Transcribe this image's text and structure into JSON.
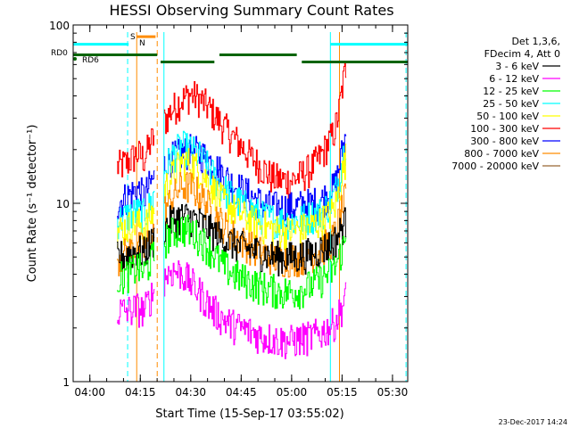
{
  "chart_data": {
    "type": "line",
    "title": "HESSI Observing Summary Count Rates",
    "xlabel": "Start Time (15-Sep-17 03:55:02)",
    "ylabel": "Count Rate (s⁻¹ detector⁻¹)",
    "y_scale": "log",
    "ylim": [
      1,
      100
    ],
    "x_unit": "minutes after 03:55:02",
    "xlim": [
      0,
      99.5
    ],
    "x_tick_labels": [
      "04:00",
      "04:15",
      "04:30",
      "04:45",
      "05:00",
      "05:15",
      "05:30"
    ],
    "x_tick_values": [
      4.97,
      19.97,
      34.97,
      49.97,
      64.97,
      79.97,
      94.97
    ],
    "y_tick_labels": [
      "1",
      "10",
      "100"
    ],
    "y_tick_values": [
      1,
      10,
      100
    ],
    "date_stamp": "23-Dec-2017 14:24",
    "legend": {
      "header": [
        "Det 1,3,6,",
        "FDecim 4, Att 0"
      ],
      "entries": [
        {
          "label": "3 - 6 keV",
          "color": "#000000"
        },
        {
          "label": "6 - 12 keV",
          "color": "#ff00ff"
        },
        {
          "label": "12 - 25 keV",
          "color": "#00ff00"
        },
        {
          "label": "25 - 50 keV",
          "color": "#00ffff"
        },
        {
          "label": "50 - 100 keV",
          "color": "#ffff00"
        },
        {
          "label": "100 - 300 keV",
          "color": "#ff0000"
        },
        {
          "label": "300 - 800 keV",
          "color": "#0000ff"
        },
        {
          "label": "800 - 7000 keV",
          "color": "#ff8c00"
        },
        {
          "label": "7000 - 20000 keV",
          "color": "#996633"
        }
      ]
    },
    "flags": {
      "rd0_label": "RD0",
      "rd6_label": "RD6",
      "s_label": "S",
      "n_label": "N"
    },
    "series": [
      {
        "name": "100 - 300 keV",
        "color": "#ff0000",
        "x": [
          13,
          16,
          19,
          21,
          23,
          26,
          29,
          32,
          35,
          38,
          41,
          44,
          47,
          50,
          53,
          56,
          59,
          62,
          65,
          68,
          71,
          74,
          77,
          78,
          79,
          80,
          81
        ],
        "y": [
          16,
          17,
          19,
          18,
          22,
          27,
          33,
          38,
          41,
          38,
          33,
          28,
          24,
          21,
          18,
          16,
          14,
          13.5,
          13.5,
          14.5,
          16,
          19,
          24,
          27,
          33,
          45,
          58
        ]
      },
      {
        "name": "300 - 800 keV",
        "color": "#0000ff",
        "x": [
          13,
          16,
          19,
          21,
          23,
          26,
          29,
          32,
          35,
          38,
          41,
          44,
          47,
          50,
          53,
          56,
          59,
          62,
          65,
          68,
          71,
          74,
          77,
          78,
          79,
          80,
          81
        ],
        "y": [
          10,
          11,
          12,
          11,
          13,
          16,
          18,
          19,
          20,
          19,
          17,
          15,
          13,
          12,
          11,
          10,
          9.6,
          9.5,
          9.5,
          9.8,
          10,
          10.5,
          12,
          13,
          16,
          20,
          24
        ]
      },
      {
        "name": "25 - 50 keV",
        "color": "#00ffff",
        "x": [
          13,
          16,
          19,
          21,
          23,
          26,
          29,
          32,
          35,
          38,
          41,
          44,
          47,
          50,
          53,
          56,
          59,
          62,
          65,
          68,
          71,
          74,
          77,
          78,
          79,
          80,
          81
        ],
        "y": [
          8,
          8.5,
          9,
          8.6,
          10,
          14,
          18,
          21,
          20,
          18,
          15,
          12.5,
          11,
          10,
          9.2,
          8.5,
          8.2,
          8,
          8,
          8.2,
          8.6,
          9,
          10.5,
          12,
          14,
          18,
          22
        ]
      },
      {
        "name": "50 - 100 keV",
        "color": "#ffff00",
        "x": [
          13,
          16,
          19,
          21,
          23,
          26,
          29,
          32,
          35,
          38,
          41,
          44,
          47,
          50,
          53,
          56,
          59,
          62,
          65,
          68,
          71,
          74,
          77,
          78,
          79,
          80,
          81
        ],
        "y": [
          7,
          7.4,
          7.8,
          7.4,
          8.5,
          11,
          14,
          17,
          17,
          15,
          12.5,
          10.5,
          9.5,
          8.6,
          8,
          7.5,
          7.2,
          7,
          7,
          7.2,
          7.5,
          8,
          9,
          10,
          12,
          15,
          18
        ]
      },
      {
        "name": "800 - 7000 keV",
        "color": "#ff8c00",
        "x": [
          13,
          16,
          19,
          21,
          23,
          26,
          29,
          32,
          35,
          38,
          41,
          44,
          47,
          50,
          53,
          56,
          59,
          62,
          65,
          68,
          71,
          74,
          77,
          78,
          79,
          80,
          81
        ],
        "y": [
          5,
          5.3,
          5.8,
          5.5,
          6.5,
          8.5,
          10.5,
          12.5,
          12.5,
          11,
          9.3,
          7.8,
          6.8,
          6.2,
          5.7,
          5.3,
          5,
          4.9,
          4.9,
          5,
          5.2,
          5.6,
          6.3,
          7,
          8,
          9.5,
          11
        ]
      },
      {
        "name": "3 - 6 keV",
        "color": "#000000",
        "x": [
          13,
          16,
          19,
          21,
          23,
          26,
          29,
          32,
          35,
          38,
          41,
          44,
          47,
          50,
          53,
          56,
          59,
          62,
          65,
          68,
          71,
          74,
          77,
          78,
          79,
          80,
          81
        ],
        "y": [
          5,
          5.2,
          5.5,
          5.3,
          6,
          7,
          8,
          8.5,
          8.3,
          7.8,
          7,
          6.4,
          6,
          5.7,
          5.5,
          5.3,
          5.1,
          5,
          5,
          5.1,
          5.3,
          5.6,
          6,
          6.3,
          6.8,
          7.5,
          8
        ]
      },
      {
        "name": "12 - 25 keV",
        "color": "#00ff00",
        "x": [
          13,
          16,
          19,
          21,
          23,
          26,
          29,
          32,
          35,
          38,
          41,
          44,
          47,
          50,
          53,
          56,
          59,
          62,
          65,
          68,
          71,
          74,
          77,
          78,
          79,
          80,
          81
        ],
        "y": [
          3.8,
          4,
          4.4,
          4.1,
          4.8,
          5.8,
          6.8,
          7.3,
          7,
          6.3,
          5.4,
          4.6,
          4.1,
          3.8,
          3.6,
          3.4,
          3.3,
          3.2,
          3.2,
          3.3,
          3.5,
          3.8,
          4.2,
          4.5,
          5,
          5.6,
          6.2
        ]
      },
      {
        "name": "6 - 12 keV",
        "color": "#ff00ff",
        "x": [
          13,
          16,
          19,
          21,
          23,
          26,
          29,
          32,
          35,
          38,
          41,
          44,
          47,
          50,
          53,
          56,
          59,
          62,
          65,
          68,
          71,
          74,
          77,
          78,
          79,
          80,
          81
        ],
        "y": [
          2.5,
          2.5,
          2.6,
          2.5,
          3,
          3.7,
          4.2,
          4.1,
          3.6,
          3.1,
          2.6,
          2.3,
          2.1,
          2,
          1.9,
          1.8,
          1.75,
          1.7,
          1.7,
          1.75,
          1.8,
          1.9,
          2.1,
          2.2,
          2.4,
          2.7,
          3
        ]
      }
    ],
    "flag_bars": [
      {
        "kind": "cyan",
        "x0": 0,
        "x1": 16.5,
        "y": 78
      },
      {
        "kind": "cyan",
        "x0": 76.5,
        "x1": 99.5,
        "y": 78
      },
      {
        "kind": "orange",
        "x0": 19,
        "x1": 24.5,
        "y": 86
      },
      {
        "kind": "green",
        "x0": 0,
        "x1": 25,
        "y": 68
      },
      {
        "kind": "green",
        "x0": 26,
        "x1": 42,
        "y": 62
      },
      {
        "kind": "green",
        "x0": 43.5,
        "x1": 66.5,
        "y": 68
      },
      {
        "kind": "green",
        "x0": 68,
        "x1": 99.5,
        "y": 62
      }
    ],
    "vertical_markers": [
      {
        "x": 16.2,
        "color": "#00ffff",
        "style": "dashed"
      },
      {
        "x": 18.9,
        "color": "#ff8c00",
        "style": "solid"
      },
      {
        "x": 25,
        "color": "#ff8c00",
        "style": "dashed"
      },
      {
        "x": 27,
        "color": "#00ffff",
        "style": "solid"
      },
      {
        "x": 76.5,
        "color": "#00ffff",
        "style": "solid"
      },
      {
        "x": 79.2,
        "color": "#ff8c00",
        "style": "solid"
      },
      {
        "x": 99,
        "color": "#00ffff",
        "style": "dashed"
      }
    ]
  }
}
